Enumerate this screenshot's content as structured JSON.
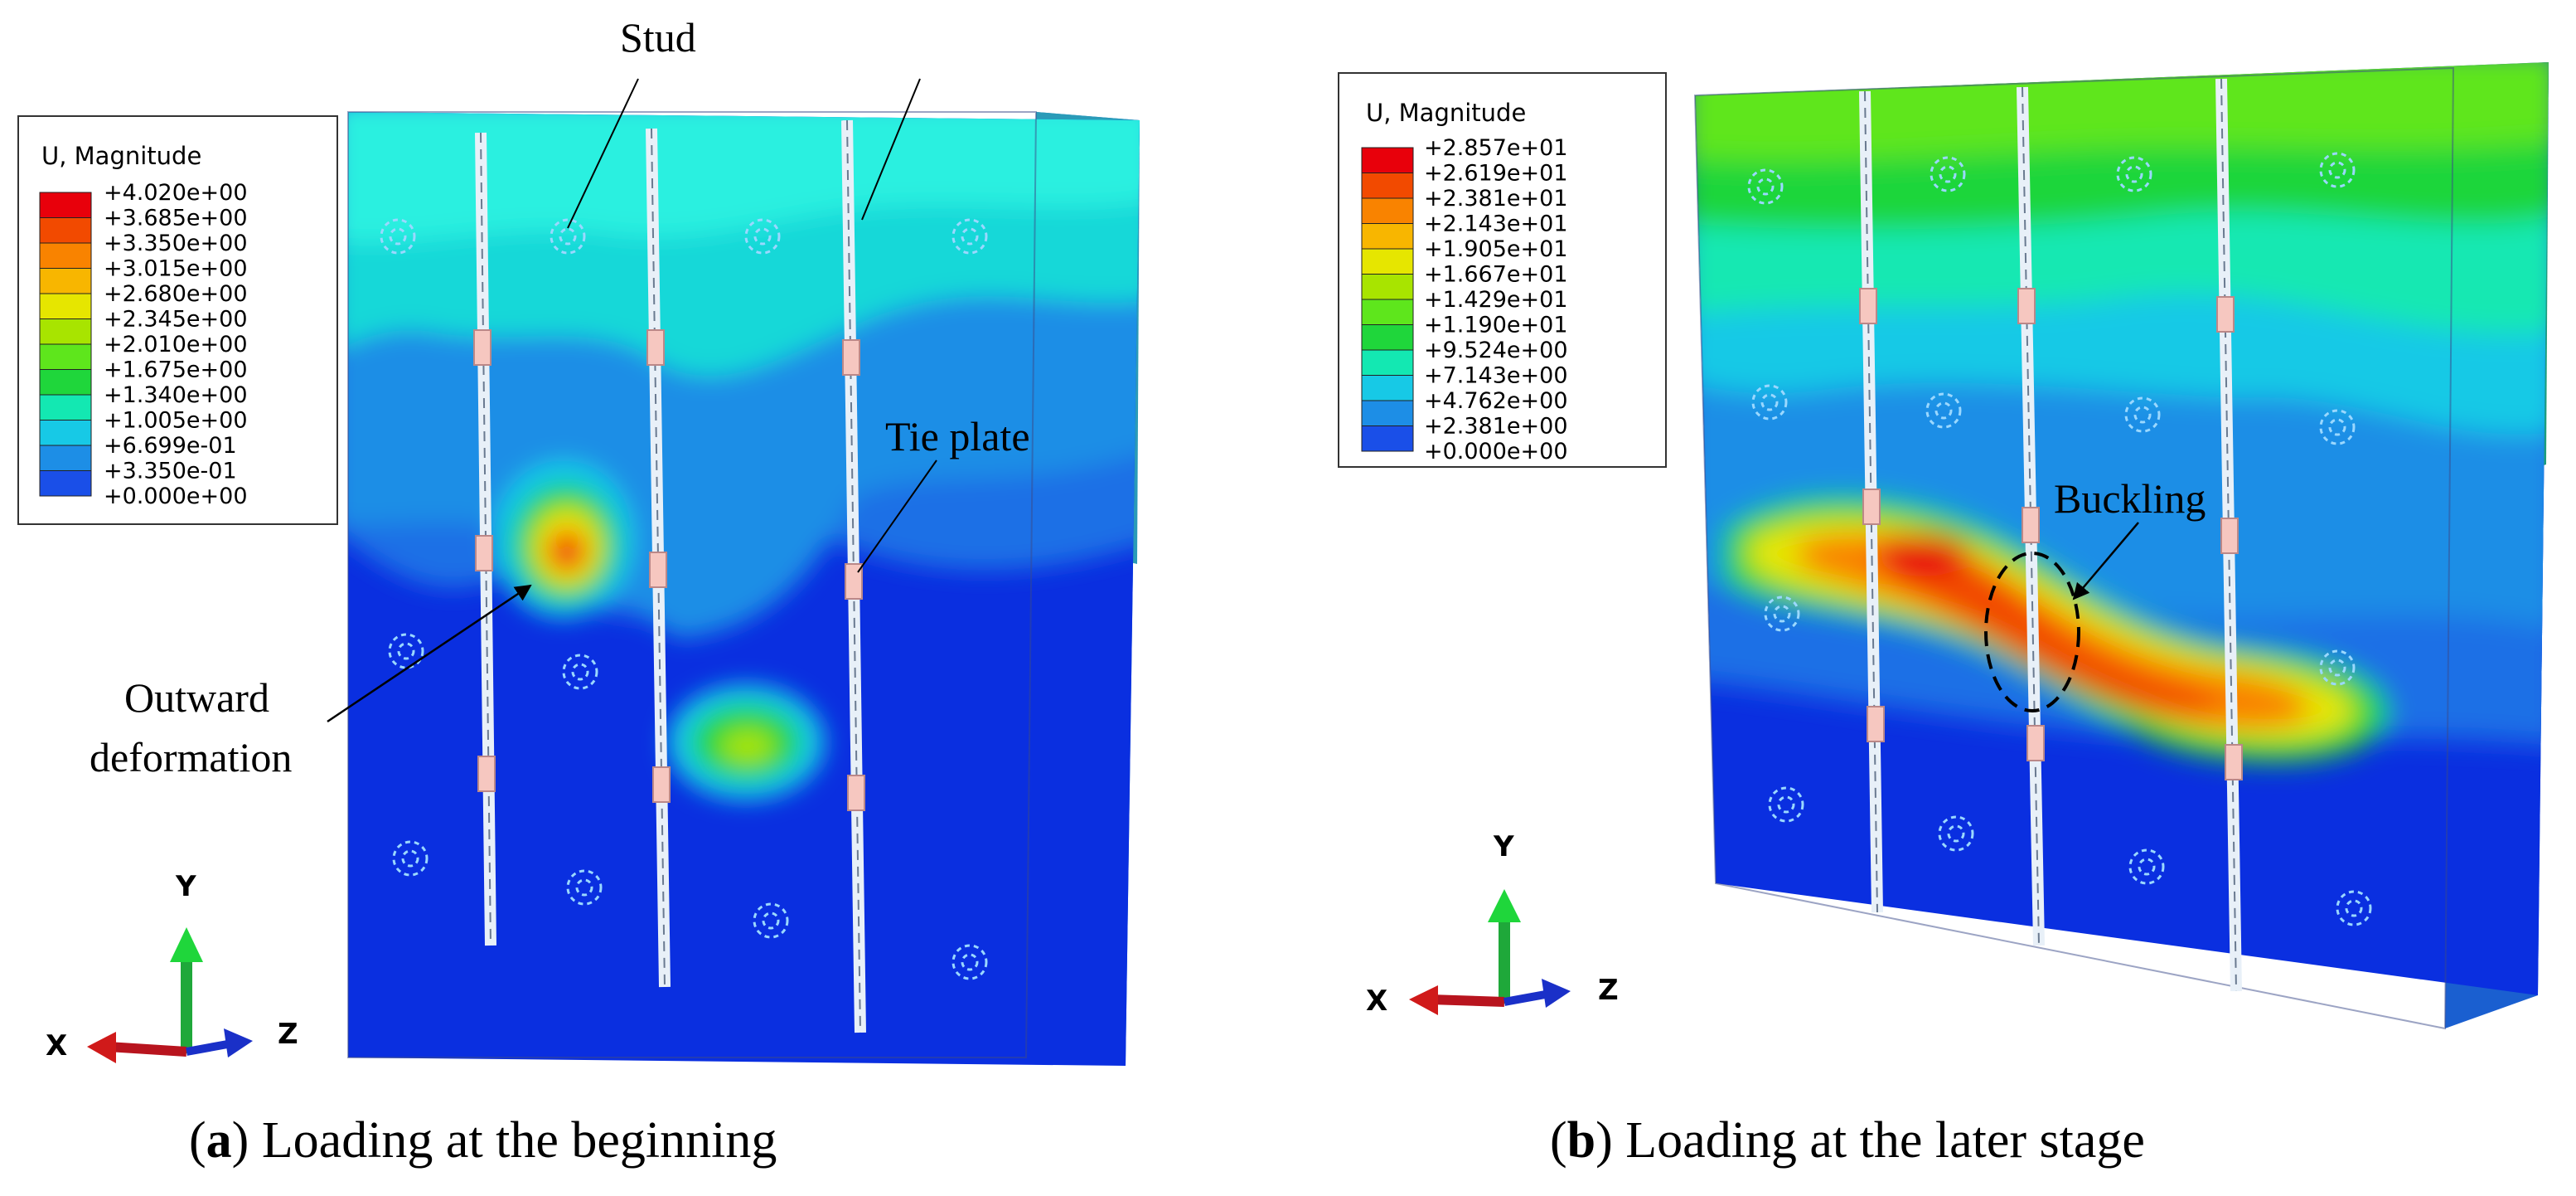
{
  "panels": [
    {
      "legend": {
        "title": "U, Magnitude",
        "values": [
          "+4.020e+00",
          "+3.685e+00",
          "+3.350e+00",
          "+3.015e+00",
          "+2.680e+00",
          "+2.345e+00",
          "+2.010e+00",
          "+1.675e+00",
          "+1.340e+00",
          "+1.005e+00",
          "+6.699e-01",
          "+3.350e-01",
          "+0.000e+00"
        ],
        "colors": [
          "#e8000b",
          "#f24a00",
          "#f98300",
          "#f8b600",
          "#e6e600",
          "#a8e400",
          "#5ee61c",
          "#1fd63b",
          "#13e8b2",
          "#17c9e6",
          "#1d8ee6",
          "#1a4fe8",
          "#0a0ad8"
        ]
      },
      "annotations": {
        "stud": "Stud",
        "tie_plate": "Tie plate",
        "outward_line1": "Outward",
        "outward_line2": "deformation"
      },
      "axes": {
        "x": "X",
        "y": "Y",
        "z": "Z"
      },
      "caption": {
        "letter": "a",
        "text": " Loading at the beginning"
      }
    },
    {
      "legend": {
        "title": "U, Magnitude",
        "values": [
          "+2.857e+01",
          "+2.619e+01",
          "+2.381e+01",
          "+2.143e+01",
          "+1.905e+01",
          "+1.667e+01",
          "+1.429e+01",
          "+1.190e+01",
          "+9.524e+00",
          "+7.143e+00",
          "+4.762e+00",
          "+2.381e+00",
          "+0.000e+00"
        ],
        "colors": [
          "#e8000b",
          "#f24a00",
          "#f98300",
          "#f8b600",
          "#e6e600",
          "#a8e400",
          "#5ee61c",
          "#1fd63b",
          "#13e8b2",
          "#17c9e6",
          "#1d8ee6",
          "#1a4fe8",
          "#0a0ad8"
        ]
      },
      "annotations": {
        "buckling": "Buckling"
      },
      "axes": {
        "x": "X",
        "y": "Y",
        "z": "Z"
      },
      "caption": {
        "letter": "b",
        "text": " Loading at the later stage"
      }
    }
  ]
}
